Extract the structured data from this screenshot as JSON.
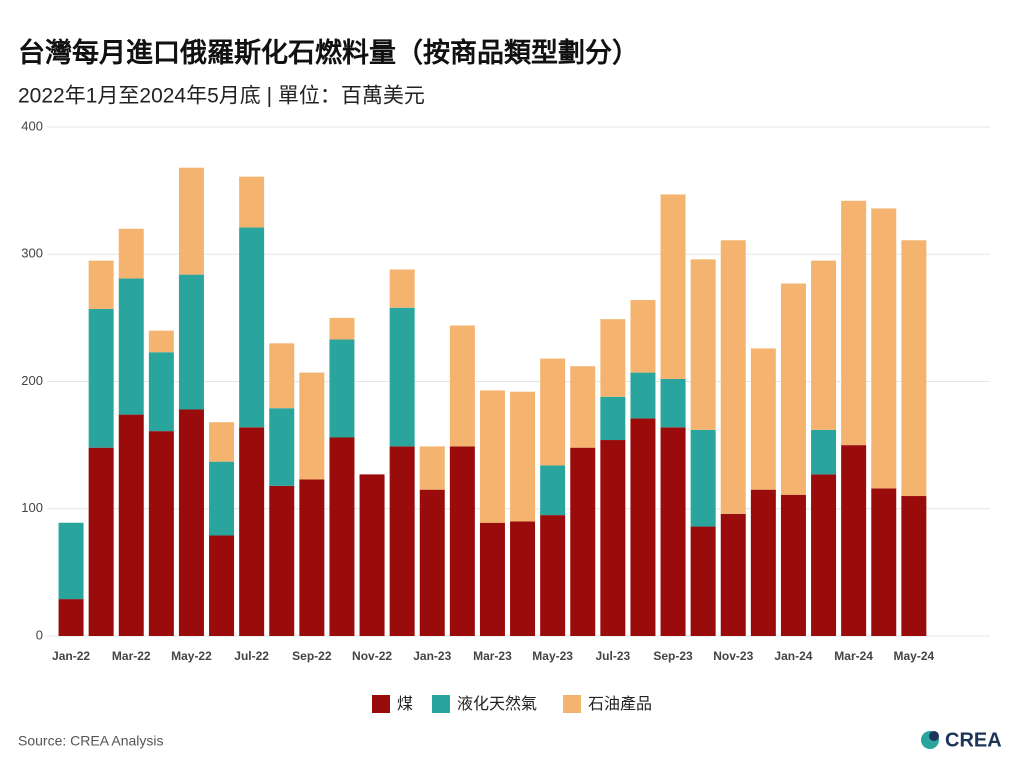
{
  "chart_data": {
    "type": "stacked-bar",
    "title": "台灣每月進口俄羅斯化石燃料量（按商品類型劃分）",
    "subtitle": "2022年1月至2024年5月底 | 單位：百萬美元",
    "categories": [
      "Jan-22",
      null,
      "Mar-22",
      null,
      "May-22",
      null,
      "Jul-22",
      null,
      "Sep-22",
      null,
      "Nov-22",
      null,
      "Jan-23",
      null,
      "Mar-23",
      null,
      "May-23",
      null,
      "Jul-23",
      null,
      "Sep-23",
      null,
      "Nov-23",
      null,
      "Jan-24",
      null,
      "Mar-24",
      null,
      "May-24"
    ],
    "series": [
      {
        "name": "煤",
        "color": "#9a0b0b",
        "values": [
          29,
          148,
          174,
          161,
          178,
          79,
          164,
          118,
          123,
          156,
          127,
          149,
          115,
          149,
          89,
          90,
          95,
          148,
          154,
          171,
          164,
          86,
          96,
          115,
          111,
          127,
          150,
          116,
          110
        ]
      },
      {
        "name": "液化天然氣",
        "color": "#2aa59e",
        "values": [
          60,
          109,
          107,
          62,
          106,
          58,
          157,
          61,
          0,
          77,
          0,
          109,
          0,
          0,
          0,
          0,
          39,
          0,
          34,
          36,
          38,
          76,
          0,
          0,
          0,
          35,
          0,
          0,
          0
        ]
      },
      {
        "name": "石油產品",
        "color": "#f4b470",
        "values": [
          0,
          38,
          39,
          17,
          84,
          31,
          40,
          51,
          84,
          17,
          0,
          30,
          34,
          95,
          104,
          102,
          84,
          64,
          61,
          57,
          145,
          134,
          215,
          111,
          166,
          133,
          192,
          220,
          201
        ]
      }
    ],
    "ylim": [
      0,
      400
    ],
    "yticks": [
      0,
      100,
      200,
      300,
      400
    ],
    "grid": true,
    "source": "Source: CREA Analysis",
    "logo": "CREA"
  }
}
